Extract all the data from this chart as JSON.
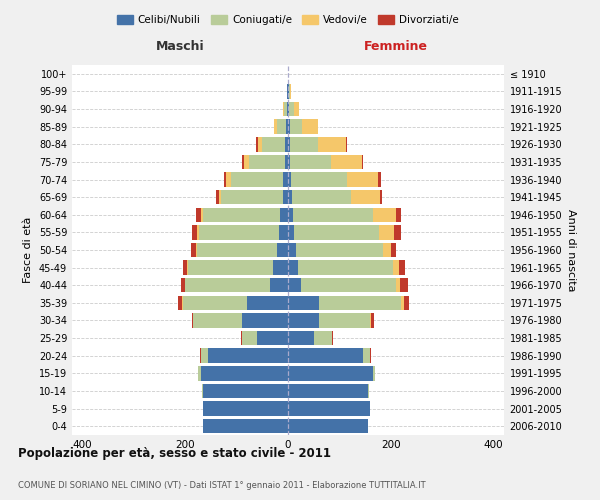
{
  "age_groups": [
    "0-4",
    "5-9",
    "10-14",
    "15-19",
    "20-24",
    "25-29",
    "30-34",
    "35-39",
    "40-44",
    "45-49",
    "50-54",
    "55-59",
    "60-64",
    "65-69",
    "70-74",
    "75-79",
    "80-84",
    "85-89",
    "90-94",
    "95-99",
    "100+"
  ],
  "birth_years": [
    "2006-2010",
    "2001-2005",
    "1996-2000",
    "1991-1995",
    "1986-1990",
    "1981-1985",
    "1976-1980",
    "1971-1975",
    "1966-1970",
    "1961-1965",
    "1956-1960",
    "1951-1955",
    "1946-1950",
    "1941-1945",
    "1936-1940",
    "1931-1935",
    "1926-1930",
    "1921-1925",
    "1916-1920",
    "1911-1915",
    "≤ 1910"
  ],
  "male": {
    "celibe": [
      165,
      165,
      165,
      170,
      155,
      60,
      90,
      80,
      35,
      30,
      22,
      18,
      15,
      10,
      10,
      6,
      5,
      4,
      2,
      1,
      0
    ],
    "coniugato": [
      0,
      0,
      2,
      5,
      15,
      30,
      95,
      125,
      165,
      165,
      155,
      155,
      150,
      120,
      100,
      70,
      45,
      18,
      5,
      1,
      0
    ],
    "vedovo": [
      0,
      0,
      0,
      0,
      0,
      0,
      0,
      1,
      1,
      2,
      2,
      3,
      5,
      5,
      10,
      10,
      8,
      5,
      2,
      0,
      0
    ],
    "divorziato": [
      0,
      0,
      0,
      0,
      1,
      1,
      2,
      8,
      8,
      8,
      10,
      10,
      8,
      5,
      5,
      3,
      5,
      1,
      0,
      0,
      0
    ]
  },
  "female": {
    "nubile": [
      155,
      160,
      155,
      165,
      145,
      50,
      60,
      60,
      25,
      20,
      15,
      12,
      10,
      8,
      5,
      4,
      3,
      3,
      1,
      1,
      0
    ],
    "coniugata": [
      0,
      0,
      2,
      5,
      15,
      35,
      100,
      160,
      185,
      185,
      170,
      165,
      155,
      115,
      110,
      80,
      55,
      25,
      10,
      2,
      0
    ],
    "vedova": [
      0,
      0,
      0,
      0,
      0,
      1,
      2,
      5,
      8,
      10,
      15,
      30,
      45,
      55,
      60,
      60,
      55,
      30,
      10,
      2,
      0
    ],
    "divorziata": [
      0,
      0,
      0,
      0,
      1,
      2,
      5,
      10,
      15,
      12,
      10,
      12,
      10,
      5,
      5,
      2,
      1,
      1,
      0,
      0,
      0
    ]
  },
  "colors": {
    "celibe": "#4472a8",
    "coniugato": "#b9cc99",
    "vedovo": "#f5c76a",
    "divorziato": "#c0392b"
  },
  "xlim": 420,
  "title": "Popolazione per età, sesso e stato civile - 2011",
  "subtitle": "COMUNE DI SORIANO NEL CIMINO (VT) - Dati ISTAT 1° gennaio 2011 - Elaborazione TUTTITALIA.IT",
  "ylabel": "Fasce di età",
  "ylabel_right": "Anni di nascita",
  "xlabel_left": "Maschi",
  "xlabel_right": "Femmine",
  "legend_labels": [
    "Celibi/Nubili",
    "Coniugati/e",
    "Vedovi/e",
    "Divorziati/e"
  ],
  "bg_color": "#f0f0f0",
  "plot_bg": "#ffffff"
}
